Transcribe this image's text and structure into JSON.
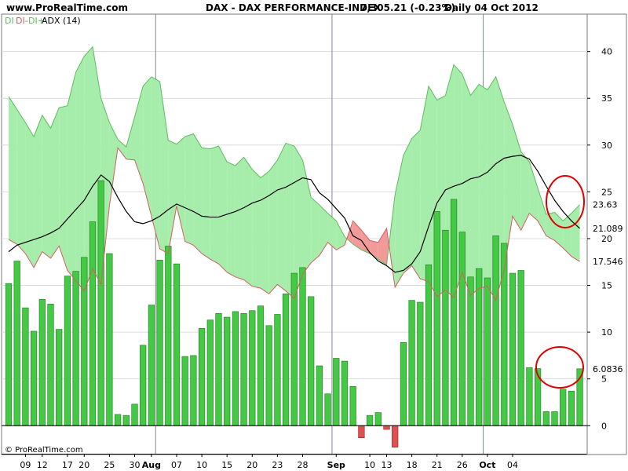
{
  "header": {
    "site": "www.ProRealTime.com",
    "instrument": "DAX - DAX PERFORMANCE-INDEX",
    "quote": "7,305.21 (-0.23%)",
    "period": "Daily  04 Oct 2012"
  },
  "legend": {
    "di_minus_a": "DI",
    "di_minus_b": "DI-",
    "di_plus": "DI+",
    "adx": "ADX (14)"
  },
  "credit": "© ProRealTime.com",
  "colors": {
    "bar_pos": "#44c944",
    "bar_neg": "#e05050",
    "di_plus": "#5fbd5f",
    "di_minus": "#d46060",
    "fill_green": "#a6ecaa",
    "fill_red": "#f29a9a",
    "adx": "#000000"
  },
  "chart_data": {
    "type": "bar+line",
    "ylim": [
      -3,
      44
    ],
    "y_ticks": [
      0,
      5,
      10,
      15,
      20,
      25,
      30,
      35,
      40
    ],
    "x_ticks": [
      {
        "label": "09",
        "i": 2,
        "bold": false
      },
      {
        "label": "12",
        "i": 4,
        "bold": false
      },
      {
        "label": "17",
        "i": 7,
        "bold": false
      },
      {
        "label": "20",
        "i": 9,
        "bold": false
      },
      {
        "label": "25",
        "i": 12,
        "bold": false
      },
      {
        "label": "30",
        "i": 15,
        "bold": false
      },
      {
        "label": "Aug",
        "i": 17,
        "bold": true
      },
      {
        "label": "07",
        "i": 20,
        "bold": false
      },
      {
        "label": "10",
        "i": 23,
        "bold": false
      },
      {
        "label": "15",
        "i": 26,
        "bold": false
      },
      {
        "label": "20",
        "i": 29,
        "bold": false
      },
      {
        "label": "23",
        "i": 32,
        "bold": false
      },
      {
        "label": "28",
        "i": 35,
        "bold": false
      },
      {
        "label": "Sep",
        "i": 39,
        "bold": true
      },
      {
        "label": "10",
        "i": 43,
        "bold": false
      },
      {
        "label": "13",
        "i": 45,
        "bold": false
      },
      {
        "label": "18",
        "i": 48,
        "bold": false
      },
      {
        "label": "21",
        "i": 51,
        "bold": false
      },
      {
        "label": "26",
        "i": 54,
        "bold": false
      },
      {
        "label": "Oct",
        "i": 57,
        "bold": true
      },
      {
        "label": "04",
        "i": 60,
        "bold": false
      }
    ],
    "month_separators": [
      17.5,
      38.5,
      56.5
    ],
    "series": [
      {
        "name": "DI",
        "values": [
          15.2,
          17.6,
          12.6,
          10.1,
          13.5,
          13,
          10.3,
          16,
          16.5,
          18,
          21.8,
          26.2,
          18.4,
          1.2,
          1.1,
          2.3,
          8.6,
          12.9,
          17.7,
          19.2,
          17.3,
          7.4,
          7.5,
          10.4,
          11.3,
          12,
          11.6,
          12.2,
          12,
          12.3,
          12.8,
          10.7,
          11.9,
          14.1,
          16.3,
          16.9,
          13.8,
          6.4,
          3.4,
          7.2,
          6.9,
          4.2,
          -1.3,
          1.1,
          1.4,
          -0.4,
          -2.3,
          8.9,
          13.4,
          13.2,
          17.2,
          22.9,
          20.9,
          24.2,
          20.7,
          15.9,
          16.8,
          15.8,
          20.3,
          19.5,
          16.3,
          16.6,
          6.2,
          6.1,
          1.5,
          1.5,
          3.9,
          3.7,
          6.08
        ]
      },
      {
        "name": "DI+",
        "values": [
          35.2,
          33.8,
          32.4,
          30.9,
          33.2,
          31.8,
          34,
          34.2,
          37.8,
          39.5,
          40.5,
          35,
          32.4,
          30.6,
          29.8,
          33,
          36.3,
          37.3,
          36.8,
          30.5,
          30.1,
          30.9,
          31.2,
          29.7,
          29.6,
          29.9,
          28.2,
          27.8,
          28.7,
          27.4,
          26.5,
          27.2,
          28.4,
          30.2,
          29.9,
          28.4,
          24.4,
          23.6,
          22.7,
          21.9,
          20.2,
          19.4,
          18.8,
          18.4,
          17.8,
          17.2,
          24.7,
          28.9,
          30.7,
          31.6,
          36.3,
          34.8,
          35.3,
          38.6,
          37.6,
          35.3,
          36.5,
          35.9,
          37.3,
          34.6,
          32.2,
          29.3,
          28.2,
          25.4,
          22.6,
          22.8,
          21.9,
          22.7,
          23.63
        ]
      },
      {
        "name": "DI-",
        "values": [
          19.9,
          19.4,
          18.4,
          16.9,
          18.6,
          17.9,
          19.2,
          16.6,
          15.5,
          14.4,
          16.8,
          15.1,
          23.5,
          29.7,
          28.5,
          28.4,
          25.9,
          22.4,
          18.9,
          18.4,
          23.5,
          19.7,
          19.3,
          18.4,
          17.8,
          17.3,
          16.4,
          15.9,
          15.6,
          14.9,
          14.7,
          14.1,
          15.1,
          14.4,
          13.6,
          16.2,
          17.4,
          18.2,
          19.6,
          18.8,
          19.3,
          21.9,
          20.9,
          19.8,
          19.6,
          21.1,
          14.8,
          16.3,
          17.1,
          15.7,
          15.4,
          13.8,
          14.5,
          13.7,
          16.4,
          13.9,
          14.7,
          14.9,
          13.4,
          16.7,
          22.4,
          20.9,
          22.7,
          21.9,
          20.3,
          19.8,
          19.0,
          18.1,
          17.546
        ]
      },
      {
        "name": "ADX (14)",
        "values": [
          18.6,
          19.3,
          19.6,
          19.9,
          20.2,
          20.6,
          21.1,
          22.1,
          23.1,
          24.1,
          25.6,
          26.8,
          26.1,
          24.4,
          22.9,
          21.8,
          21.6,
          21.9,
          22.4,
          23.1,
          23.7,
          23.3,
          22.9,
          22.4,
          22.3,
          22.3,
          22.6,
          22.9,
          23.3,
          23.8,
          24.1,
          24.6,
          25.2,
          25.5,
          26.0,
          26.5,
          26.3,
          24.9,
          24.2,
          23.2,
          22.2,
          20.3,
          19.8,
          18.5,
          17.6,
          17.1,
          16.4,
          16.6,
          17.3,
          18.6,
          21.3,
          23.8,
          25.2,
          25.6,
          25.9,
          26.4,
          26.6,
          27.1,
          28.0,
          28.6,
          28.8,
          28.9,
          28.5,
          27.2,
          25.6,
          24.1,
          22.9,
          21.9,
          21.089
        ]
      }
    ],
    "last_values": {
      "DI": "6.0836",
      "DI+": "23.63",
      "ADX (14)": "21.089",
      "DI-": "17.546"
    }
  }
}
